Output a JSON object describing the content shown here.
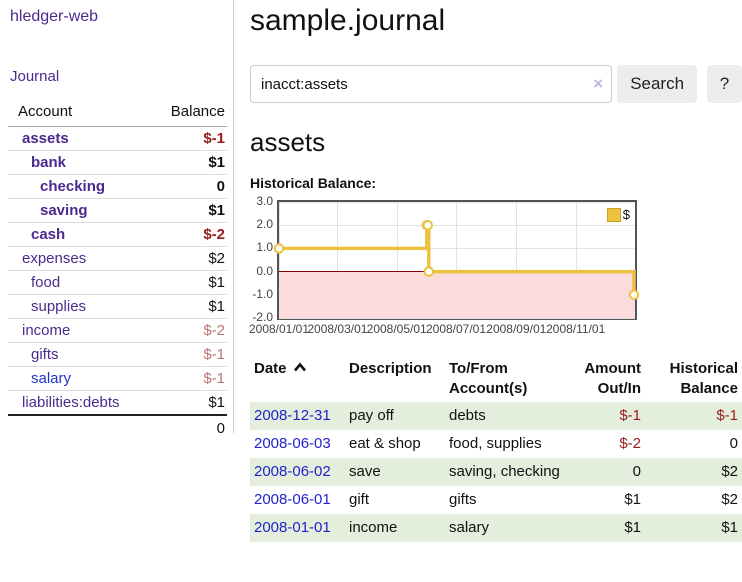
{
  "app": {
    "brand": "hledger-web",
    "nav_journal": "Journal"
  },
  "sidebar": {
    "header": {
      "account": "Account",
      "balance": "Balance"
    },
    "accounts": [
      {
        "name": "assets",
        "balance": "$-1",
        "indent": 1,
        "strong": true,
        "balance_class": "neg"
      },
      {
        "name": "bank",
        "balance": "$1",
        "indent": 2,
        "strong": true,
        "balance_class": ""
      },
      {
        "name": "checking",
        "balance": "0",
        "indent": 3,
        "strong": true,
        "balance_class": ""
      },
      {
        "name": "saving",
        "balance": "$1",
        "indent": 3,
        "strong": true,
        "balance_class": ""
      },
      {
        "name": "cash",
        "balance": "$-2",
        "indent": 2,
        "strong": true,
        "balance_class": "neg"
      },
      {
        "name": "expenses",
        "balance": "$2",
        "indent": 1,
        "strong": false,
        "balance_class": ""
      },
      {
        "name": "food",
        "balance": "$1",
        "indent": 2,
        "strong": false,
        "balance_class": ""
      },
      {
        "name": "supplies",
        "balance": "$1",
        "indent": 2,
        "strong": false,
        "balance_class": ""
      },
      {
        "name": "income",
        "balance": "$-2",
        "indent": 1,
        "strong": false,
        "balance_class": "muted"
      },
      {
        "name": "gifts",
        "balance": "$-1",
        "indent": 2,
        "strong": false,
        "balance_class": "muted"
      },
      {
        "name": "salary",
        "balance": "$-1",
        "indent": 2,
        "strong": false,
        "balance_class": "muted",
        "blue": true
      },
      {
        "name": "liabilities:debts",
        "balance": "$1",
        "indent": 1,
        "strong": false,
        "balance_class": ""
      }
    ],
    "total": "0"
  },
  "main": {
    "title": "sample.journal",
    "search": {
      "value": "inacct:assets",
      "clear_icon": "×",
      "button": "Search",
      "help": "?"
    },
    "account_heading": "assets",
    "chart_label": "Historical Balance:"
  },
  "chart_data": {
    "type": "line",
    "title": "Historical Balance",
    "step": true,
    "series": [
      {
        "name": "$",
        "color": "#edc240",
        "points": [
          [
            "2008-01-01",
            1
          ],
          [
            "2008-06-01",
            2
          ],
          [
            "2008-06-02",
            2
          ],
          [
            "2008-06-03",
            0
          ],
          [
            "2008-12-31",
            -1
          ]
        ]
      }
    ],
    "x_start": "2008-01-01",
    "x_days": 366,
    "ylim": [
      -2,
      3
    ],
    "ytick_labels": [
      "3.0",
      "2.0",
      "1.0",
      "0.0",
      "-1.0",
      "-2.0"
    ],
    "xtick_labels": [
      "2008/01/01",
      "2008/03/01",
      "2008/05/01",
      "2008/07/01",
      "2008/09/01",
      "2008/11/01"
    ],
    "legend": "$",
    "colors": {
      "line": "#edc240",
      "marker_fill": "#ffffff",
      "negative_fill": "#fbdbdb",
      "zero_line": "#8b0000",
      "grid": "#e3e3e3",
      "plot_border": "#545454"
    }
  },
  "table": {
    "headers": {
      "date": "Date",
      "description": "Description",
      "accounts": "To/From Account(s)",
      "amount": "Amount Out/In",
      "balance": "Historical Balance"
    },
    "rows": [
      {
        "date": "2008-12-31",
        "description": "pay off",
        "accounts": "debts",
        "amount": "$-1",
        "balance": "$-1",
        "amount_neg": true,
        "balance_neg": true
      },
      {
        "date": "2008-06-03",
        "description": "eat & shop",
        "accounts": "food, supplies",
        "amount": "$-2",
        "balance": "0",
        "amount_neg": true,
        "balance_neg": false
      },
      {
        "date": "2008-06-02",
        "description": "save",
        "accounts": "saving, checking",
        "amount": "0",
        "balance": "$2",
        "amount_neg": false,
        "balance_neg": false
      },
      {
        "date": "2008-06-01",
        "description": "gift",
        "accounts": "gifts",
        "amount": "$1",
        "balance": "$2",
        "amount_neg": false,
        "balance_neg": false
      },
      {
        "date": "2008-01-01",
        "description": "income",
        "accounts": "salary",
        "amount": "$1",
        "balance": "$1",
        "amount_neg": false,
        "balance_neg": false
      }
    ]
  }
}
